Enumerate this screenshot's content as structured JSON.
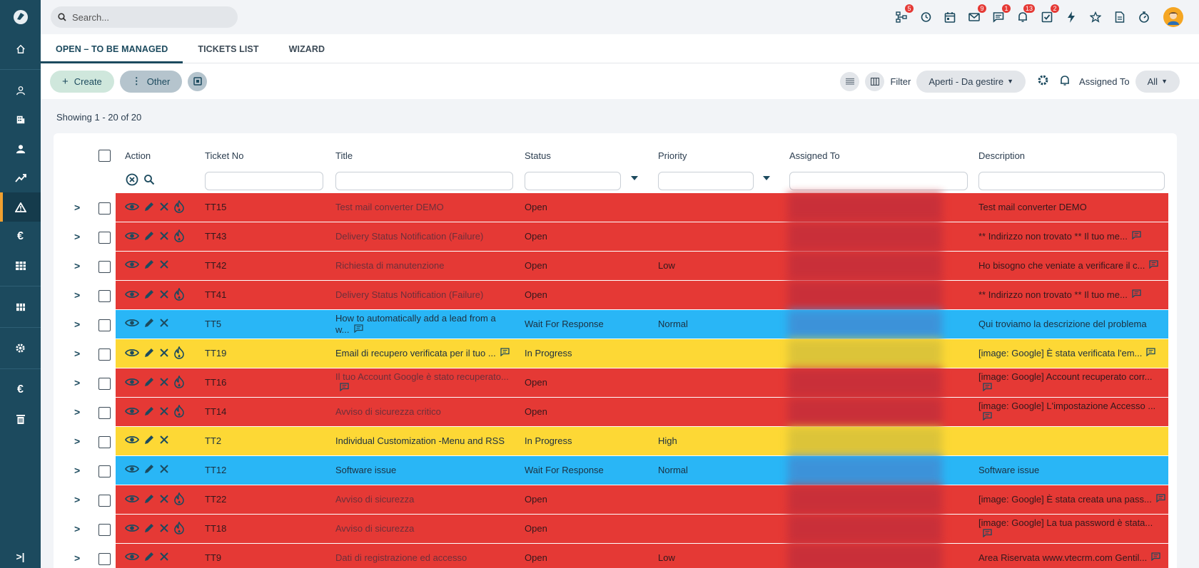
{
  "search": {
    "placeholder": "Search..."
  },
  "topbar": {
    "badges": {
      "workflow": "5",
      "mail": "9",
      "messages": "1",
      "notifications": "13",
      "tasks": "2"
    }
  },
  "tabs": [
    {
      "label": "OPEN – TO BE MANAGED",
      "active": true
    },
    {
      "label": "TICKETS LIST",
      "active": false
    },
    {
      "label": "WIZARD",
      "active": false
    }
  ],
  "toolbar": {
    "create_label": "Create",
    "other_label": "Other",
    "filter_label": "Filter",
    "filter_value": "Aperti - Da gestire",
    "assigned_label": "Assigned To",
    "assigned_value": "All"
  },
  "showing": "Showing 1 - 20 of 20",
  "columns": {
    "action": "Action",
    "ticket_no": "Ticket No",
    "title": "Title",
    "status": "Status",
    "priority": "Priority",
    "assigned_to": "Assigned To",
    "description": "Description"
  },
  "rows": [
    {
      "color": "red",
      "no": "TT15",
      "title": "Test mail converter DEMO",
      "status": "Open",
      "priority": "",
      "desc": "Test mail converter DEMO",
      "fire": true,
      "title_note": false,
      "desc_note": false
    },
    {
      "color": "red",
      "no": "TT43",
      "title": "Delivery Status Notification (Failure)",
      "status": "Open",
      "priority": "",
      "desc": "** Indirizzo non trovato ** Il tuo me...",
      "fire": true,
      "title_note": false,
      "desc_note": true
    },
    {
      "color": "red",
      "no": "TT42",
      "title": "Richiesta di manutenzione",
      "status": "Open",
      "priority": "Low",
      "desc": "Ho bisogno che veniate a verificare il c...",
      "fire": false,
      "title_note": false,
      "desc_note": true
    },
    {
      "color": "red",
      "no": "TT41",
      "title": "Delivery Status Notification (Failure)",
      "status": "Open",
      "priority": "",
      "desc": "** Indirizzo non trovato ** Il tuo me...",
      "fire": true,
      "title_note": false,
      "desc_note": true
    },
    {
      "color": "blue",
      "no": "TT5",
      "title": "How to automatically add a lead from a w...",
      "status": "Wait For Response",
      "priority": "Normal",
      "desc": "Qui troviamo la descrizione del problema",
      "fire": false,
      "title_note": true,
      "desc_note": false
    },
    {
      "color": "yellow",
      "no": "TT19",
      "title": "Email di recupero verificata per il tuo ...",
      "status": "In Progress",
      "priority": "",
      "desc": "[image: Google] È stata verificata l'em...",
      "fire": true,
      "title_note": true,
      "desc_note": true
    },
    {
      "color": "red",
      "no": "TT16",
      "title": "Il tuo Account Google è stato recuperato...",
      "status": "Open",
      "priority": "",
      "desc": "[image: Google] Account recuperato corr...",
      "fire": true,
      "title_note": true,
      "desc_note": true
    },
    {
      "color": "red",
      "no": "TT14",
      "title": "Avviso di sicurezza critico",
      "status": "Open",
      "priority": "",
      "desc": "[image: Google] L'impostazione Accesso ...",
      "fire": true,
      "title_note": false,
      "desc_note": true
    },
    {
      "color": "yellow",
      "no": "TT2",
      "title": "Individual Customization -Menu and RSS",
      "status": "In Progress",
      "priority": "High",
      "desc": "",
      "fire": false,
      "title_note": false,
      "desc_note": false
    },
    {
      "color": "blue",
      "no": "TT12",
      "title": "Software issue",
      "status": "Wait For Response",
      "priority": "Normal",
      "desc": "Software issue",
      "fire": false,
      "title_note": false,
      "desc_note": false
    },
    {
      "color": "red",
      "no": "TT22",
      "title": "Avviso di sicurezza",
      "status": "Open",
      "priority": "",
      "desc": "[image: Google] È stata creata una pass...",
      "fire": true,
      "title_note": false,
      "desc_note": true
    },
    {
      "color": "red",
      "no": "TT18",
      "title": "Avviso di sicurezza",
      "status": "Open",
      "priority": "",
      "desc": "[image: Google] La tua password è stata...",
      "fire": true,
      "title_note": false,
      "desc_note": true
    },
    {
      "color": "red",
      "no": "TT9",
      "title": "Dati di registrazione ed accesso",
      "status": "Open",
      "priority": "Low",
      "desc": "Area Riservata www.vtecrm.com Gentil...",
      "fire": false,
      "title_note": false,
      "desc_note": true
    }
  ]
}
